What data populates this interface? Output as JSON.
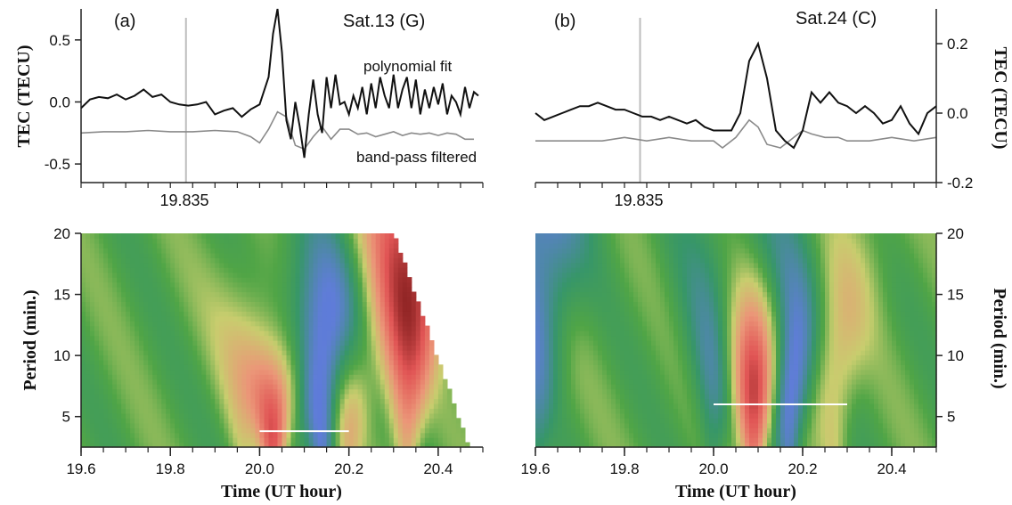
{
  "colors": {
    "fit_line": "#111111",
    "filtered_line": "#8a8a8a",
    "marker_line": "#bdbdbd",
    "bar_line": "#ffffff",
    "axis": "#222222"
  },
  "chart_data": [
    {
      "type": "line",
      "panel": "a",
      "label": "(a)",
      "title": "Sat.13 (G)",
      "ylabel": "TEC (TECU)",
      "xlim": [
        19.6,
        20.5
      ],
      "ylim": [
        -0.65,
        0.75
      ],
      "yticks": [
        "0.5",
        "0.0",
        "-0.5"
      ],
      "ytick_values": [
        0.5,
        0.0,
        -0.5
      ],
      "marker": {
        "x": 19.835,
        "label": "19.835"
      },
      "annotations": [
        "polynomial fit",
        "band-pass filtered"
      ],
      "series": [
        {
          "role": "fit",
          "x": [
            19.6,
            19.62,
            19.64,
            19.66,
            19.68,
            19.7,
            19.72,
            19.74,
            19.76,
            19.78,
            19.8,
            19.82,
            19.84,
            19.86,
            19.88,
            19.9,
            19.92,
            19.94,
            19.96,
            19.98,
            20.0,
            20.02,
            20.03,
            20.04,
            20.05,
            20.06,
            20.07,
            20.08,
            20.09,
            20.1,
            20.11,
            20.12,
            20.13,
            20.14,
            20.15,
            20.16,
            20.17,
            20.18,
            20.19,
            20.2,
            20.21,
            20.22,
            20.23,
            20.24,
            20.25,
            20.26,
            20.27,
            20.28,
            20.29,
            20.3,
            20.31,
            20.32,
            20.33,
            20.34,
            20.35,
            20.36,
            20.37,
            20.38,
            20.39,
            20.4,
            20.41,
            20.42,
            20.43,
            20.44,
            20.45,
            20.46,
            20.47,
            20.48,
            20.49
          ],
          "values": [
            -0.05,
            0.02,
            0.04,
            0.03,
            0.06,
            0.02,
            0.05,
            0.1,
            0.04,
            0.06,
            0.0,
            -0.02,
            -0.03,
            -0.02,
            0.0,
            -0.1,
            -0.07,
            -0.05,
            -0.12,
            -0.06,
            -0.02,
            0.2,
            0.55,
            0.75,
            0.4,
            -0.15,
            -0.3,
            0.0,
            -0.2,
            -0.45,
            -0.1,
            0.18,
            -0.1,
            -0.25,
            0.2,
            -0.05,
            0.22,
            -0.02,
            0.0,
            -0.1,
            0.05,
            -0.05,
            0.12,
            -0.1,
            0.15,
            -0.05,
            0.2,
            0.05,
            -0.05,
            0.22,
            -0.05,
            0.1,
            0.2,
            -0.05,
            0.18,
            -0.1,
            0.1,
            -0.05,
            0.12,
            -0.02,
            0.15,
            -0.1,
            0.05,
            0.0,
            -0.1,
            0.12,
            -0.05,
            0.08,
            0.05
          ]
        },
        {
          "role": "filtered",
          "x": [
            19.6,
            19.65,
            19.7,
            19.75,
            19.8,
            19.85,
            19.9,
            19.95,
            19.98,
            20.0,
            20.02,
            20.04,
            20.06,
            20.08,
            20.1,
            20.12,
            20.14,
            20.16,
            20.18,
            20.2,
            20.22,
            20.24,
            20.26,
            20.28,
            20.3,
            20.32,
            20.34,
            20.36,
            20.38,
            20.4,
            20.42,
            20.44,
            20.46,
            20.48
          ],
          "values": [
            -0.25,
            -0.24,
            -0.24,
            -0.23,
            -0.24,
            -0.24,
            -0.23,
            -0.24,
            -0.28,
            -0.33,
            -0.22,
            -0.08,
            -0.12,
            -0.35,
            -0.38,
            -0.28,
            -0.2,
            -0.3,
            -0.22,
            -0.22,
            -0.26,
            -0.25,
            -0.28,
            -0.26,
            -0.24,
            -0.27,
            -0.25,
            -0.26,
            -0.25,
            -0.27,
            -0.25,
            -0.26,
            -0.3,
            -0.3
          ]
        }
      ]
    },
    {
      "type": "line",
      "panel": "b",
      "label": "(b)",
      "title": "Sat.24 (C)",
      "ylabel": "TEC (TECU)",
      "xlim": [
        19.6,
        20.5
      ],
      "ylim": [
        -0.2,
        0.3
      ],
      "yticks": [
        "0.2",
        "0.0",
        "-0.2"
      ],
      "ytick_values": [
        0.2,
        0.0,
        -0.2
      ],
      "marker": {
        "x": 19.835,
        "label": "19.835"
      },
      "series": [
        {
          "role": "fit",
          "x": [
            19.6,
            19.62,
            19.64,
            19.66,
            19.68,
            19.7,
            19.72,
            19.74,
            19.76,
            19.78,
            19.8,
            19.82,
            19.84,
            19.86,
            19.88,
            19.9,
            19.92,
            19.94,
            19.96,
            19.98,
            20.0,
            20.02,
            20.04,
            20.06,
            20.08,
            20.1,
            20.12,
            20.14,
            20.16,
            20.18,
            20.2,
            20.22,
            20.24,
            20.26,
            20.28,
            20.3,
            20.32,
            20.34,
            20.36,
            20.38,
            20.4,
            20.42,
            20.44,
            20.46,
            20.48,
            20.5
          ],
          "values": [
            0.0,
            -0.02,
            -0.01,
            0.0,
            0.01,
            0.02,
            0.02,
            0.03,
            0.02,
            0.01,
            0.01,
            0.0,
            -0.01,
            -0.01,
            -0.02,
            -0.01,
            -0.02,
            -0.03,
            -0.02,
            -0.04,
            -0.05,
            -0.05,
            -0.05,
            0.0,
            0.15,
            0.2,
            0.1,
            -0.05,
            -0.08,
            -0.1,
            -0.05,
            0.06,
            0.03,
            0.06,
            0.03,
            0.02,
            0.0,
            0.02,
            0.0,
            -0.03,
            -0.02,
            0.02,
            -0.03,
            -0.06,
            0.0,
            0.02
          ]
        },
        {
          "role": "filtered",
          "x": [
            19.6,
            19.65,
            19.7,
            19.75,
            19.8,
            19.85,
            19.9,
            19.95,
            20.0,
            20.02,
            20.05,
            20.08,
            20.1,
            20.12,
            20.15,
            20.18,
            20.2,
            20.22,
            20.25,
            20.28,
            20.3,
            20.35,
            20.4,
            20.45,
            20.5
          ],
          "values": [
            -0.08,
            -0.08,
            -0.08,
            -0.08,
            -0.07,
            -0.08,
            -0.07,
            -0.08,
            -0.08,
            -0.1,
            -0.07,
            -0.02,
            -0.04,
            -0.09,
            -0.1,
            -0.07,
            -0.05,
            -0.06,
            -0.07,
            -0.07,
            -0.08,
            -0.08,
            -0.07,
            -0.08,
            -0.07
          ]
        }
      ]
    },
    {
      "type": "heatmap",
      "panel": "a",
      "xlabel": "Time (UT hour)",
      "ylabel": "Period (min.)",
      "xlim": [
        19.6,
        20.5
      ],
      "ylim": [
        2.5,
        20
      ],
      "xticks": [
        "19.6",
        "19.8",
        "20.0",
        "20.2",
        "20.4"
      ],
      "xtick_values": [
        19.6,
        19.8,
        20.0,
        20.2,
        20.4
      ],
      "yticks": [
        "20",
        "15",
        "10",
        "5"
      ],
      "ytick_values": [
        20,
        15,
        10,
        5
      ],
      "cone_of_influence": {
        "x_at_top": 20.3,
        "x_at_bottom": 20.47
      },
      "features": [
        {
          "x": 20.03,
          "period": 4.5,
          "sign": 1,
          "strength": 1.0
        },
        {
          "x": 20.14,
          "period": 10,
          "sign": -1,
          "strength": 0.8
        },
        {
          "x": 20.33,
          "period": 15,
          "sign": 1,
          "strength": 1.2
        },
        {
          "x": 19.96,
          "period": 8,
          "sign": 1,
          "strength": 0.3
        },
        {
          "x": 20.2,
          "period": 4,
          "sign": 1,
          "strength": 0.35
        }
      ],
      "highlight": {
        "x": [
          20.0,
          20.2
        ],
        "period": 3.8
      }
    },
    {
      "type": "heatmap",
      "panel": "b",
      "xlabel": "Time (UT hour)",
      "ylabel": "Period (min.)",
      "xlim": [
        19.6,
        20.5
      ],
      "ylim": [
        2.5,
        20
      ],
      "xticks": [
        "19.6",
        "19.8",
        "20.0",
        "20.2",
        "20.4"
      ],
      "xtick_values": [
        19.6,
        19.8,
        20.0,
        20.2,
        20.4
      ],
      "yticks": [
        "20",
        "15",
        "10",
        "5"
      ],
      "ytick_values": [
        20,
        15,
        10,
        5
      ],
      "features": [
        {
          "x": 20.09,
          "period": 8,
          "sign": 1,
          "strength": 1.3
        },
        {
          "x": 20.17,
          "period": 11,
          "sign": -1,
          "strength": 0.9
        },
        {
          "x": 20.0,
          "period": 10,
          "sign": -1,
          "strength": 0.5
        },
        {
          "x": 20.27,
          "period": 12,
          "sign": 1,
          "strength": 0.45
        },
        {
          "x": 19.6,
          "period": 19,
          "sign": -1,
          "strength": 0.6
        }
      ],
      "highlight": {
        "x": [
          20.0,
          20.3
        ],
        "period": 6
      }
    }
  ]
}
